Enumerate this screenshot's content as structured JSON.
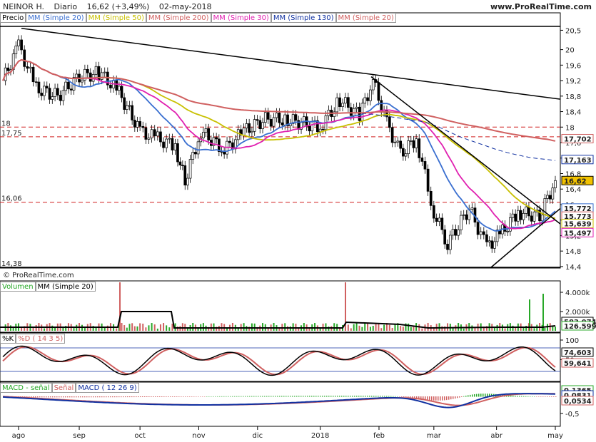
{
  "header": {
    "instrument": "NEINOR H.",
    "period": "Diario",
    "quote": "16,62 (+3,49%)",
    "date": "02-may-2018",
    "site": "www.ProRealTime.com"
  },
  "watermark": "© ProRealTime.com",
  "price_panel": {
    "legend": [
      {
        "text": "Precio",
        "color": "#000000"
      },
      {
        "text": "MM (Simple 20)",
        "color": "#3a6fd0"
      },
      {
        "text": "MM (Simple 50)",
        "color": "#c8c000"
      },
      {
        "text": "MM (Simple 200)",
        "color": "#d06060"
      },
      {
        "text": "MM (Simple 30)",
        "color": "#e020b0"
      },
      {
        "text": "MM (Simple 130)",
        "color": "#1030a0"
      },
      {
        "text": "MM (Simple 20)",
        "color": "#d06060"
      }
    ],
    "left_labels": [
      "18",
      "17,75",
      "16,06",
      "14,38"
    ],
    "y_ticks": [
      "20,5",
      "20",
      "19,6",
      "19,2",
      "18,8",
      "18,4",
      "18",
      "17,6",
      "17,2",
      "16,8",
      "16,4",
      "16",
      "15,6",
      "15,2",
      "14,8",
      "14,4"
    ],
    "value_boxes": [
      {
        "text": "17,702",
        "color": "#d06060"
      },
      {
        "text": "17,163",
        "color": "#1030a0"
      },
      {
        "text": "16,62",
        "color": "#000000",
        "bg": "#f2c200"
      },
      {
        "text": "15,772",
        "color": "#3a6fd0"
      },
      {
        "text": "15,773",
        "color": "#d06060"
      },
      {
        "text": "15,639",
        "color": "#c8c000"
      },
      {
        "text": "15,497",
        "color": "#e020b0"
      }
    ]
  },
  "volume_panel": {
    "legend": [
      {
        "text": "Volumen",
        "color": "#28a828"
      },
      {
        "text": "MM (Simple 20)",
        "color": "#000000"
      }
    ],
    "y_ticks": [
      "4.000k",
      "2.000k"
    ],
    "value_boxes": [
      {
        "text": "583,074",
        "color": "#000000"
      },
      {
        "text": "126.599",
        "color": "#28a828"
      }
    ]
  },
  "stoch_panel": {
    "legend": [
      {
        "text": "%K",
        "color": "#000000"
      },
      {
        "text": "%D ( 14 3 5)",
        "color": "#d06060"
      }
    ],
    "y_ticks": [
      "100",
      "50"
    ],
    "value_boxes": [
      {
        "text": "74,603",
        "color": "#000000"
      },
      {
        "text": "59,641",
        "color": "#d06060"
      }
    ]
  },
  "macd_panel": {
    "legend": [
      {
        "text": "MACD - señal",
        "color": "#28a828"
      },
      {
        "text": "Señal",
        "color": "#d06060"
      },
      {
        "text": "MACD ( 12 26 9)",
        "color": "#1030a0"
      }
    ],
    "y_ticks": [
      "-0,5"
    ],
    "value_boxes": [
      {
        "text": "0,1365",
        "color": "#28a828"
      },
      {
        "text": "0,0831",
        "color": "#1030a0"
      },
      {
        "text": "0,0534",
        "color": "#d06060"
      }
    ]
  },
  "x_axis": [
    "ago",
    "sep",
    "oct",
    "nov",
    "dic",
    "2018",
    "feb",
    "mar",
    "abr",
    "may"
  ],
  "chart_data": [
    {
      "type": "candlestick",
      "title": "NEINOR H. Diario",
      "ylim": [
        14.38,
        20.6
      ],
      "close_series": {
        "x": [
          "2017-07-24",
          "2017-08-01",
          "2017-08-10",
          "2017-08-21",
          "2017-09-01",
          "2017-09-11",
          "2017-09-20",
          "2017-10-02",
          "2017-10-11",
          "2017-10-20",
          "2017-10-25",
          "2017-11-02",
          "2017-11-14",
          "2017-11-24",
          "2017-12-05",
          "2017-12-15",
          "2018-01-02",
          "2018-01-12",
          "2018-01-22",
          "2018-01-29",
          "2018-02-05",
          "2018-02-12",
          "2018-02-20",
          "2018-03-01",
          "2018-03-08",
          "2018-03-19",
          "2018-03-28",
          "2018-04-05",
          "2018-04-13",
          "2018-04-24",
          "2018-05-02"
        ],
        "values": [
          19.2,
          20.1,
          19.0,
          18.8,
          19.3,
          19.4,
          19.0,
          17.9,
          17.7,
          17.5,
          16.6,
          17.9,
          17.4,
          17.9,
          18.2,
          18.2,
          18.0,
          18.7,
          18.3,
          19.2,
          18.1,
          17.3,
          17.7,
          15.8,
          15.0,
          15.9,
          14.9,
          15.3,
          15.8,
          15.7,
          16.62
        ]
      },
      "horizontal_levels": [
        18.0,
        17.75,
        16.06,
        14.38
      ],
      "indicators_last": {
        "MM Simple 200": 17.702,
        "MM Simple 130": 17.163,
        "MM Simple 20": 15.772,
        "MM Simple 50": 15.639,
        "MM Simple 30": 15.497
      }
    },
    {
      "type": "bar",
      "title": "Volumen",
      "y_ticks": [
        "4.000k",
        "2.000k"
      ],
      "last": {
        "Volumen": 126599,
        "MM (Simple 20)": 583074
      }
    },
    {
      "type": "line",
      "title": "Estocástico %K %D ( 14 3 5)",
      "ylim": [
        0,
        100
      ],
      "last": {
        "%K": 74.603,
        "%D": 59.641
      }
    },
    {
      "type": "line",
      "title": "MACD ( 12 26 9)",
      "last": {
        "MACD - señal": 0.1365,
        "MACD": 0.0831,
        "Señal": 0.0534
      }
    }
  ]
}
